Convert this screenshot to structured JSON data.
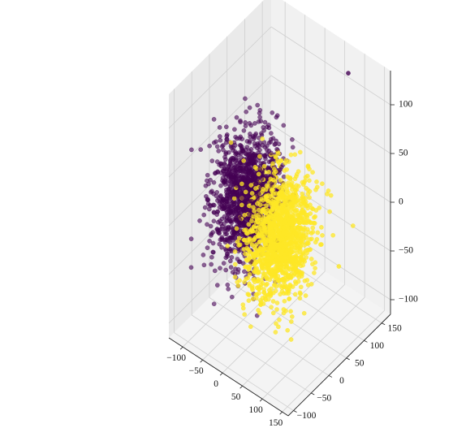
{
  "chart_data": {
    "type": "scatter",
    "projection": "3d",
    "title": "",
    "xlabel": "",
    "ylabel": "",
    "zlabel": "",
    "xlim": [
      -135,
      165
    ],
    "ylim": [
      -115,
      175
    ],
    "zlim": [
      -115,
      135
    ],
    "x_ticks": [
      "−100",
      "−50",
      "0",
      "50",
      "100",
      "150"
    ],
    "y_ticks": [
      "−100",
      "−50",
      "0",
      "50",
      "100",
      "150"
    ],
    "z_ticks": [
      "−100",
      "−50",
      "0",
      "50",
      "100"
    ],
    "x_tick_values": [
      -100,
      -50,
      0,
      50,
      100,
      150
    ],
    "y_tick_values": [
      -100,
      -50,
      0,
      50,
      100,
      150
    ],
    "z_tick_values": [
      -100,
      -50,
      0,
      50,
      100
    ],
    "grid": true,
    "legend": "none",
    "series": [
      {
        "color": "#440154",
        "alpha": 0.6,
        "count": 3000,
        "center": [
          -45,
          5,
          10
        ],
        "spread": [
          27,
          35,
          30
        ],
        "sample_points": [
          [
            -60,
            0,
            20
          ],
          [
            -45,
            10,
            5
          ],
          [
            -30,
            -10,
            15
          ],
          [
            -70,
            20,
            -10
          ],
          [
            -50,
            -20,
            30
          ],
          [
            -35,
            30,
            0
          ]
        ]
      },
      {
        "color": "#fde725",
        "alpha": 0.75,
        "count": 3000,
        "center": [
          35,
          5,
          -10
        ],
        "spread": [
          28,
          35,
          30
        ],
        "sample_points": [
          [
            20,
            0,
            -20
          ],
          [
            40,
            10,
            -5
          ],
          [
            55,
            -10,
            -15
          ],
          [
            30,
            20,
            10
          ],
          [
            60,
            25,
            -30
          ],
          [
            45,
            -20,
            0
          ]
        ]
      }
    ],
    "outliers": [
      {
        "color": "#440154",
        "x": 90,
        "y": 140,
        "z": 125
      },
      {
        "color": "#fde725",
        "x": 155,
        "y": 40,
        "z": -20
      }
    ]
  }
}
